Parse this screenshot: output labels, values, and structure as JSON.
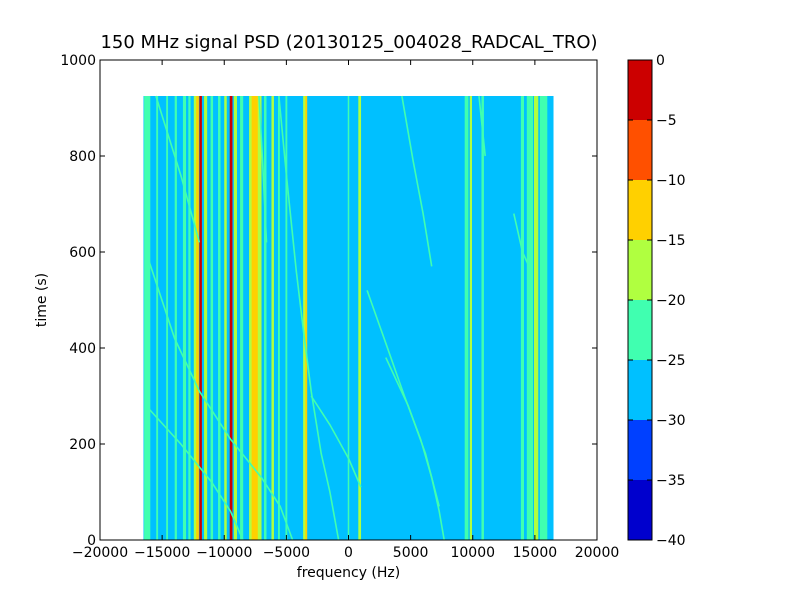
{
  "chart_data": {
    "type": "heatmap",
    "title": "150 MHz signal PSD (20130125_004028_RADCAL_TRO)",
    "xlabel": "frequency (Hz)",
    "ylabel": "time (s)",
    "xlim": [
      -20000,
      20000
    ],
    "ylim": [
      0,
      1000
    ],
    "xticks": [
      -20000,
      -15000,
      -10000,
      -5000,
      0,
      5000,
      10000,
      15000,
      20000
    ],
    "xtick_labels": [
      "−20000",
      "−15000",
      "−10000",
      "−5000",
      "0",
      "5000",
      "10000",
      "15000",
      "20000"
    ],
    "yticks": [
      0,
      200,
      400,
      600,
      800,
      1000
    ],
    "ytick_labels": [
      "0",
      "200",
      "400",
      "600",
      "800",
      "1000"
    ],
    "data_extent": {
      "x": [
        -16500,
        16500
      ],
      "y": [
        0,
        925
      ]
    },
    "background_level": -27.5,
    "colorbar": {
      "levels": [
        -40,
        -35,
        -30,
        -25,
        -20,
        -15,
        -10,
        -5,
        0
      ],
      "tick_labels": [
        "−40",
        "−35",
        "−30",
        "−25",
        "−20",
        "−15",
        "−10",
        "−5",
        "0"
      ],
      "colors": [
        "#0000cd",
        "#0040ff",
        "#00c0ff",
        "#40ffb0",
        "#b0ff40",
        "#ffd000",
        "#ff5000",
        "#cc0000"
      ]
    },
    "vertical_lines": [
      {
        "f": -16200,
        "w": 500,
        "level": -22.5
      },
      {
        "f": -15400,
        "w": 150,
        "level": -22.5
      },
      {
        "f": -14600,
        "w": 150,
        "level": -22.5
      },
      {
        "f": -13900,
        "w": 180,
        "level": -22.5
      },
      {
        "f": -13200,
        "w": 250,
        "level": -22.5
      },
      {
        "f": -12800,
        "w": 180,
        "level": -22.5
      },
      {
        "f": -12300,
        "w": 300,
        "level": -17.5
      },
      {
        "f": -12150,
        "w": 220,
        "level": -12.5
      },
      {
        "f": -11900,
        "w": 200,
        "level": -2.5
      },
      {
        "f": -11500,
        "w": 250,
        "level": -17.5
      },
      {
        "f": -11000,
        "w": 200,
        "level": -22.5
      },
      {
        "f": -10400,
        "w": 200,
        "level": -22.5
      },
      {
        "f": -9900,
        "w": 200,
        "level": -17.5
      },
      {
        "f": -9450,
        "w": 220,
        "level": -2.5
      },
      {
        "f": -9100,
        "w": 250,
        "level": -17.5
      },
      {
        "f": -8600,
        "w": 250,
        "level": -22.5
      },
      {
        "f": -7850,
        "w": 300,
        "level": -17.5
      },
      {
        "f": -7500,
        "w": 600,
        "level": -12.5
      },
      {
        "f": -7150,
        "w": 300,
        "level": -17.5
      },
      {
        "f": -6700,
        "w": 200,
        "level": -22.5
      },
      {
        "f": -6100,
        "w": 200,
        "level": -17.5
      },
      {
        "f": -5600,
        "w": 150,
        "level": -22.5
      },
      {
        "f": -5000,
        "w": 150,
        "level": -22.5
      },
      {
        "f": -3550,
        "w": 200,
        "level": -17.5
      },
      {
        "f": -3400,
        "w": 150,
        "level": -12.5
      },
      {
        "f": 0,
        "w": 120,
        "level": -22.5
      },
      {
        "f": 900,
        "w": 220,
        "level": -17.5
      },
      {
        "f": 9500,
        "w": 300,
        "level": -22.5
      },
      {
        "f": 9850,
        "w": 180,
        "level": -17.5
      },
      {
        "f": 10800,
        "w": 200,
        "level": -22.5
      },
      {
        "f": 14000,
        "w": 250,
        "level": -22.5
      },
      {
        "f": 14600,
        "w": 500,
        "level": -22.5
      },
      {
        "f": 15100,
        "w": 350,
        "level": -17.5
      },
      {
        "f": 15700,
        "w": 600,
        "level": -22.5
      }
    ],
    "diagonal_traces": [
      [
        [
          -16300,
          280
        ],
        [
          -13500,
          200
        ],
        [
          -11000,
          120
        ],
        [
          -9500,
          60
        ],
        [
          -8500,
          0
        ]
      ],
      [
        [
          -16300,
          600
        ],
        [
          -14000,
          420
        ],
        [
          -12000,
          310
        ],
        [
          -9500,
          210
        ],
        [
          -7000,
          130
        ],
        [
          -5500,
          70
        ],
        [
          -4500,
          0
        ]
      ],
      [
        [
          -15500,
          925
        ],
        [
          -13500,
          760
        ],
        [
          -12000,
          620
        ]
      ],
      [
        [
          -5600,
          925
        ],
        [
          -5000,
          760
        ],
        [
          -4200,
          560
        ],
        [
          -3600,
          430
        ],
        [
          -3000,
          310
        ],
        [
          -2200,
          180
        ],
        [
          -1500,
          100
        ],
        [
          -800,
          0
        ]
      ],
      [
        [
          -7200,
          925
        ],
        [
          -6900,
          780
        ],
        [
          -6600,
          620
        ]
      ],
      [
        [
          -3000,
          300
        ],
        [
          -1500,
          240
        ],
        [
          0,
          170
        ],
        [
          1000,
          110
        ]
      ],
      [
        [
          4300,
          925
        ],
        [
          5200,
          790
        ],
        [
          6000,
          680
        ],
        [
          6700,
          570
        ]
      ],
      [
        [
          1500,
          520
        ],
        [
          3000,
          410
        ],
        [
          4500,
          300
        ],
        [
          5800,
          210
        ],
        [
          6700,
          130
        ],
        [
          7300,
          60
        ],
        [
          7700,
          0
        ]
      ],
      [
        [
          3000,
          380
        ],
        [
          4800,
          280
        ],
        [
          6200,
          180
        ],
        [
          7300,
          70
        ]
      ],
      [
        [
          13300,
          680
        ],
        [
          14000,
          600
        ],
        [
          14700,
          560
        ]
      ],
      [
        [
          10500,
          925
        ],
        [
          11000,
          800
        ]
      ]
    ]
  }
}
